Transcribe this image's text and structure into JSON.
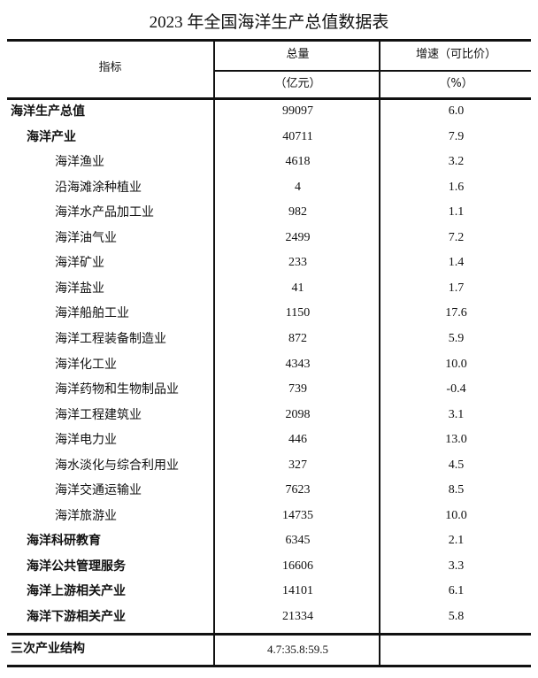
{
  "title": "2023 年全国海洋生产总值数据表",
  "header": {
    "indicator": "指标",
    "total": "总量",
    "total_unit": "（亿元）",
    "growth": "增速（可比价）",
    "growth_unit": "（%）"
  },
  "rows": [
    {
      "name": "海洋生产总值",
      "level": 0,
      "total": "99097",
      "growth": "6.0"
    },
    {
      "name": "海洋产业",
      "level": 1,
      "total": "40711",
      "growth": "7.9"
    },
    {
      "name": "海洋渔业",
      "level": 2,
      "total": "4618",
      "growth": "3.2"
    },
    {
      "name": "沿海滩涂种植业",
      "level": 2,
      "total": "4",
      "growth": "1.6"
    },
    {
      "name": "海洋水产品加工业",
      "level": 2,
      "total": "982",
      "growth": "1.1"
    },
    {
      "name": "海洋油气业",
      "level": 2,
      "total": "2499",
      "growth": "7.2"
    },
    {
      "name": "海洋矿业",
      "level": 2,
      "total": "233",
      "growth": "1.4"
    },
    {
      "name": "海洋盐业",
      "level": 2,
      "total": "41",
      "growth": "1.7"
    },
    {
      "name": "海洋船舶工业",
      "level": 2,
      "total": "1150",
      "growth": "17.6"
    },
    {
      "name": "海洋工程装备制造业",
      "level": 2,
      "total": "872",
      "growth": "5.9"
    },
    {
      "name": "海洋化工业",
      "level": 2,
      "total": "4343",
      "growth": "10.0"
    },
    {
      "name": "海洋药物和生物制品业",
      "level": 2,
      "total": "739",
      "growth": "-0.4"
    },
    {
      "name": "海洋工程建筑业",
      "level": 2,
      "total": "2098",
      "growth": "3.1"
    },
    {
      "name": "海洋电力业",
      "level": 2,
      "total": "446",
      "growth": "13.0"
    },
    {
      "name": "海水淡化与综合利用业",
      "level": 2,
      "total": "327",
      "growth": "4.5"
    },
    {
      "name": "海洋交通运输业",
      "level": 2,
      "total": "7623",
      "growth": "8.5"
    },
    {
      "name": "海洋旅游业",
      "level": 2,
      "total": "14735",
      "growth": "10.0"
    },
    {
      "name": "海洋科研教育",
      "level": 1,
      "total": "6345",
      "growth": "2.1"
    },
    {
      "name": "海洋公共管理服务",
      "level": 1,
      "total": "16606",
      "growth": "3.3"
    },
    {
      "name": "海洋上游相关产业",
      "level": 1,
      "total": "14101",
      "growth": "6.1"
    },
    {
      "name": "海洋下游相关产业",
      "level": 1,
      "total": "21334",
      "growth": "5.8"
    }
  ],
  "footer": {
    "name": "三次产业结构",
    "total": "4.7:35.8:59.5",
    "growth": ""
  }
}
